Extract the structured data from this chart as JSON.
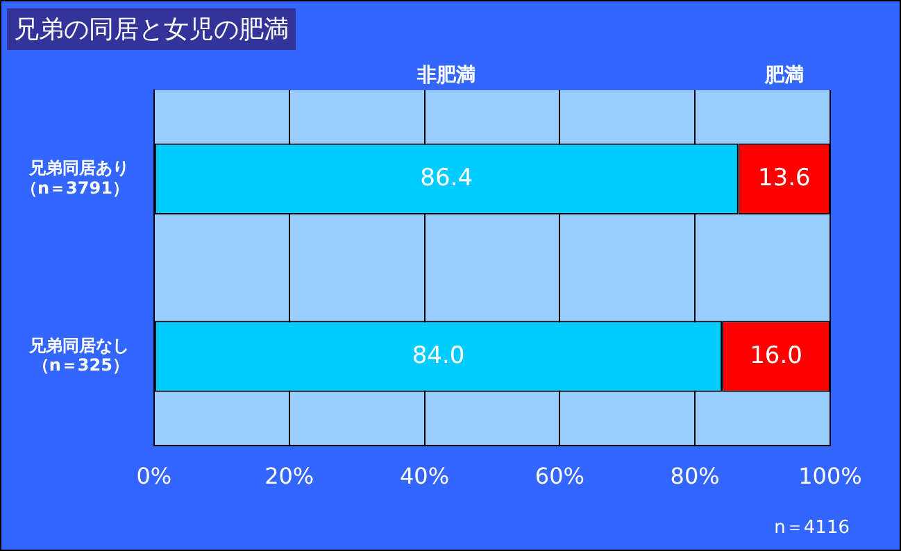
{
  "chart_data": {
    "type": "bar",
    "orientation": "horizontal",
    "stacked": true,
    "title": "兄弟の同居と女児の肥満",
    "categories": [
      "兄弟同居あり（n＝3791）",
      "兄弟同居なし（n＝325）"
    ],
    "series": [
      {
        "name": "非肥満",
        "color": "#00ccff",
        "values": [
          86.4,
          84.0
        ]
      },
      {
        "name": "肥満",
        "color": "#ff0000",
        "values": [
          13.6,
          16.0
        ]
      }
    ],
    "value_labels": [
      [
        "86.4",
        "84.0"
      ],
      [
        "13.6",
        "16.0"
      ]
    ],
    "xlim": [
      0,
      100
    ],
    "xticks": [
      {
        "value": 0,
        "label": "0%"
      },
      {
        "value": 20,
        "label": "20%"
      },
      {
        "value": 40,
        "label": "40%"
      },
      {
        "value": 60,
        "label": "60%"
      },
      {
        "value": 80,
        "label": "80%"
      },
      {
        "value": 100,
        "label": "100%"
      }
    ],
    "grid": "x",
    "annotations": [
      "n＝4116"
    ]
  }
}
